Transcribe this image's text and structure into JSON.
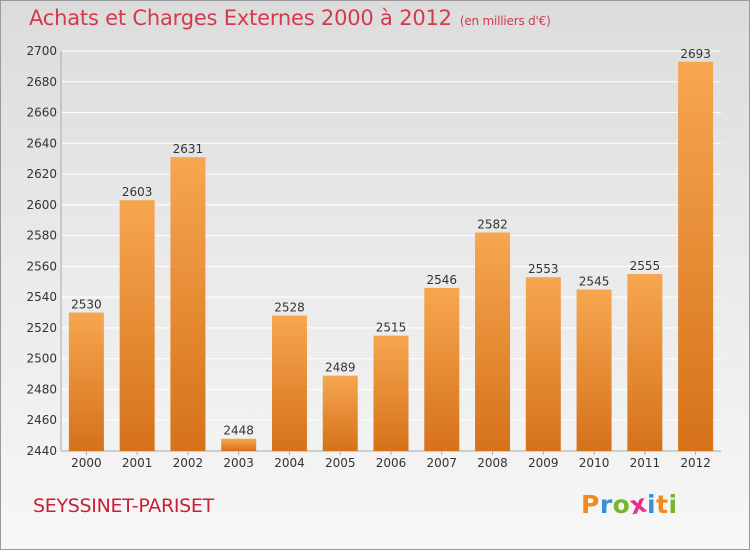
{
  "header": {
    "title": "Achats et Charges Externes 2000 à 2012",
    "unit": "(en milliers d'€)"
  },
  "footer": {
    "commune": "SEYSSINET-PARISET",
    "logo_text": "Proxiti",
    "logo_colors": [
      "#f08a1e",
      "#3b8fd4",
      "#78b62d",
      "#ec2f8a",
      "#3b8fd4",
      "#f08a1e",
      "#78b62d"
    ]
  },
  "colors": {
    "bar_top": "#f7a650",
    "bar_bottom": "#d5721a",
    "grid": "#ffffff",
    "text": "#333333"
  },
  "chart_data": {
    "type": "bar",
    "categories": [
      "2000",
      "2001",
      "2002",
      "2003",
      "2004",
      "2005",
      "2006",
      "2007",
      "2008",
      "2009",
      "2010",
      "2011",
      "2012"
    ],
    "values": [
      2530,
      2603,
      2631,
      2448,
      2528,
      2489,
      2515,
      2546,
      2582,
      2553,
      2545,
      2555,
      2693
    ],
    "ylim": [
      2440,
      2700
    ],
    "yticks": [
      2440,
      2460,
      2480,
      2500,
      2520,
      2540,
      2560,
      2580,
      2600,
      2620,
      2640,
      2660,
      2680,
      2700
    ],
    "grid": true,
    "data_labels": true
  }
}
